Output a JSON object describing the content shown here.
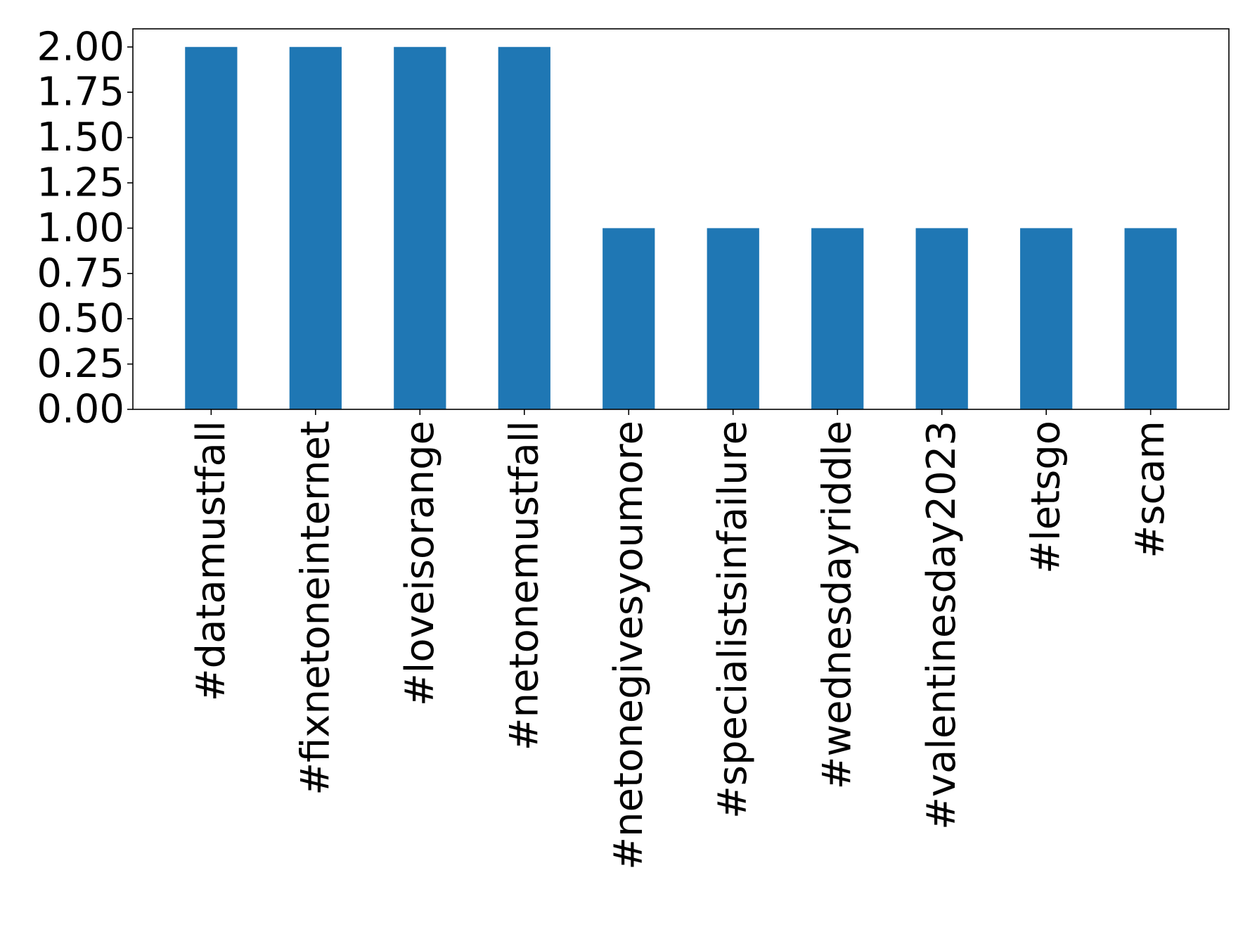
{
  "chart_data": {
    "type": "bar",
    "title": "",
    "xlabel": "",
    "ylabel": "",
    "categories": [
      "#datamustfall",
      "#fixnetoneinternet",
      "#loveisorange",
      "#netonemustfall",
      "#netonegivesyoumore",
      "#specialistsinfailure",
      "#wednesdayriddle",
      "#valentinesday2023",
      "#letsgo",
      "#scam"
    ],
    "values": [
      2,
      2,
      2,
      2,
      1,
      1,
      1,
      1,
      1,
      1
    ],
    "ylim": [
      0,
      2.1
    ],
    "yticks": [
      "0.00",
      "0.25",
      "0.50",
      "0.75",
      "1.00",
      "1.25",
      "1.50",
      "1.75",
      "2.00"
    ],
    "grid": false,
    "legend": "none",
    "bar_color": "#1f77b4",
    "axis_color": "#000000"
  }
}
